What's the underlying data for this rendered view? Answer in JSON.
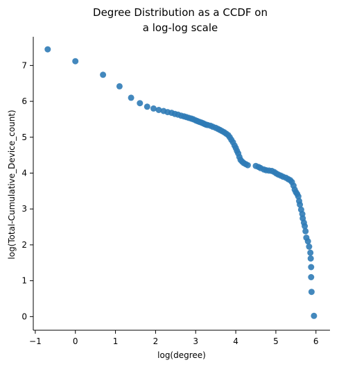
{
  "chart_data": {
    "type": "scatter",
    "title": [
      "Degree Distribution as a CCDF on",
      "a log-log scale"
    ],
    "xlabel": "log(degree)",
    "ylabel": "log(Total-Cumulative_Device_count)",
    "xlim": [
      -1.05,
      6.35
    ],
    "ylim": [
      -0.38,
      7.8
    ],
    "xticks": [
      -1,
      0,
      1,
      2,
      3,
      4,
      5,
      6
    ],
    "yticks": [
      0,
      1,
      2,
      3,
      4,
      5,
      6,
      7
    ],
    "grid": false,
    "marker_color": "#2f7bb6",
    "points": [
      [
        -0.69,
        7.45
      ],
      [
        0.0,
        7.12
      ],
      [
        0.69,
        6.74
      ],
      [
        1.1,
        6.42
      ],
      [
        1.39,
        6.1
      ],
      [
        1.61,
        5.95
      ],
      [
        1.79,
        5.85
      ],
      [
        1.95,
        5.8
      ],
      [
        2.08,
        5.76
      ],
      [
        2.2,
        5.73
      ],
      [
        2.3,
        5.7
      ],
      [
        2.4,
        5.68
      ],
      [
        2.48,
        5.65
      ],
      [
        2.56,
        5.63
      ],
      [
        2.64,
        5.6
      ],
      [
        2.71,
        5.58
      ],
      [
        2.77,
        5.56
      ],
      [
        2.83,
        5.54
      ],
      [
        2.89,
        5.52
      ],
      [
        2.94,
        5.5
      ],
      [
        3.0,
        5.47
      ],
      [
        3.04,
        5.45
      ],
      [
        3.09,
        5.43
      ],
      [
        3.14,
        5.41
      ],
      [
        3.18,
        5.39
      ],
      [
        3.22,
        5.37
      ],
      [
        3.26,
        5.35
      ],
      [
        3.3,
        5.34
      ],
      [
        3.37,
        5.32
      ],
      [
        3.43,
        5.29
      ],
      [
        3.5,
        5.26
      ],
      [
        3.56,
        5.23
      ],
      [
        3.61,
        5.2
      ],
      [
        3.66,
        5.17
      ],
      [
        3.71,
        5.14
      ],
      [
        3.76,
        5.1
      ],
      [
        3.81,
        5.06
      ],
      [
        3.85,
        5.0
      ],
      [
        3.89,
        4.93
      ],
      [
        3.93,
        4.86
      ],
      [
        3.97,
        4.77
      ],
      [
        4.0,
        4.7
      ],
      [
        4.03,
        4.62
      ],
      [
        4.06,
        4.55
      ],
      [
        4.09,
        4.45
      ],
      [
        4.12,
        4.37
      ],
      [
        4.16,
        4.32
      ],
      [
        4.2,
        4.28
      ],
      [
        4.25,
        4.25
      ],
      [
        4.3,
        4.22
      ],
      [
        4.5,
        4.2
      ],
      [
        4.57,
        4.17
      ],
      [
        4.62,
        4.14
      ],
      [
        4.7,
        4.1
      ],
      [
        4.76,
        4.08
      ],
      [
        4.83,
        4.07
      ],
      [
        4.9,
        4.06
      ],
      [
        4.96,
        4.03
      ],
      [
        5.01,
        3.99
      ],
      [
        5.06,
        3.96
      ],
      [
        5.12,
        3.93
      ],
      [
        5.18,
        3.9
      ],
      [
        5.25,
        3.87
      ],
      [
        5.31,
        3.83
      ],
      [
        5.36,
        3.8
      ],
      [
        5.4,
        3.75
      ],
      [
        5.44,
        3.65
      ],
      [
        5.47,
        3.54
      ],
      [
        5.5,
        3.47
      ],
      [
        5.53,
        3.42
      ],
      [
        5.56,
        3.35
      ],
      [
        5.58,
        3.22
      ],
      [
        5.6,
        3.12
      ],
      [
        5.63,
        2.98
      ],
      [
        5.66,
        2.86
      ],
      [
        5.67,
        2.74
      ],
      [
        5.7,
        2.62
      ],
      [
        5.72,
        2.52
      ],
      [
        5.74,
        2.38
      ],
      [
        5.76,
        2.2
      ],
      [
        5.8,
        2.1
      ],
      [
        5.83,
        1.95
      ],
      [
        5.86,
        1.78
      ],
      [
        5.87,
        1.62
      ],
      [
        5.88,
        1.38
      ],
      [
        5.88,
        1.1
      ],
      [
        5.89,
        0.69
      ],
      [
        5.95,
        0.02
      ]
    ]
  }
}
